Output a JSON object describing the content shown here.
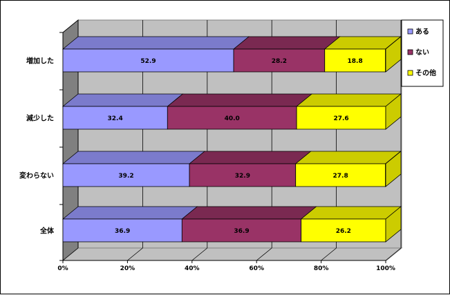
{
  "chart_data": {
    "type": "bar",
    "orientation": "horizontal",
    "stacked": "percent",
    "three_d": true,
    "categories": [
      "増加した",
      "減少した",
      "変わらない",
      "全体"
    ],
    "series": [
      {
        "name": "ある",
        "values": [
          52.9,
          32.4,
          39.2,
          36.9
        ]
      },
      {
        "name": "ない",
        "values": [
          28.2,
          40.0,
          32.9,
          36.9
        ]
      },
      {
        "name": "その他",
        "values": [
          18.8,
          27.6,
          27.8,
          26.2
        ]
      }
    ],
    "value_labels": [
      [
        "52.9",
        "28.2",
        "18.8"
      ],
      [
        "32.4",
        "40.0",
        "27.6"
      ],
      [
        "39.2",
        "32.9",
        "27.8"
      ],
      [
        "36.9",
        "36.9",
        "26.2"
      ]
    ],
    "x_ticks": [
      "0%",
      "20%",
      "40%",
      "60%",
      "80%",
      "100%"
    ],
    "xlim": [
      0,
      100
    ],
    "grid": true,
    "legend_position": "top-right",
    "colors": {
      "series": [
        "#9999ff",
        "#993366",
        "#ffff00"
      ],
      "series_top": [
        "#7b7bcc",
        "#7a2951",
        "#cccc00"
      ],
      "wall": "#c0c0c0",
      "side_wall": "#808080",
      "floor": "#c0c0c0",
      "gridline": "#000000"
    }
  }
}
